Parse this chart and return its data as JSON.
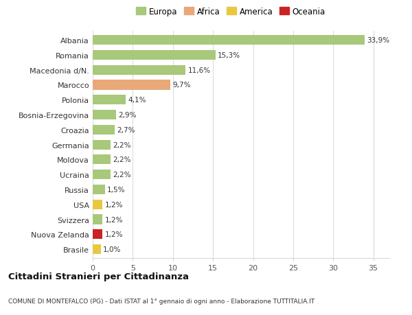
{
  "countries": [
    "Albania",
    "Romania",
    "Macedonia d/N.",
    "Marocco",
    "Polonia",
    "Bosnia-Erzegovina",
    "Croazia",
    "Germania",
    "Moldova",
    "Ucraina",
    "Russia",
    "USA",
    "Svizzera",
    "Nuova Zelanda",
    "Brasile"
  ],
  "values": [
    33.9,
    15.3,
    11.6,
    9.7,
    4.1,
    2.9,
    2.7,
    2.2,
    2.2,
    2.2,
    1.5,
    1.2,
    1.2,
    1.2,
    1.0
  ],
  "labels": [
    "33,9%",
    "15,3%",
    "11,6%",
    "9,7%",
    "4,1%",
    "2,9%",
    "2,7%",
    "2,2%",
    "2,2%",
    "2,2%",
    "1,5%",
    "1,2%",
    "1,2%",
    "1,2%",
    "1,0%"
  ],
  "continents": [
    "Europa",
    "Europa",
    "Europa",
    "Africa",
    "Europa",
    "Europa",
    "Europa",
    "Europa",
    "Europa",
    "Europa",
    "Europa",
    "America",
    "Europa",
    "Oceania",
    "America"
  ],
  "colors": {
    "Europa": "#a8c87a",
    "Africa": "#e8a878",
    "America": "#e8c840",
    "Oceania": "#cc2222"
  },
  "title": "Cittadini Stranieri per Cittadinanza",
  "subtitle": "COMUNE DI MONTEFALCO (PG) - Dati ISTAT al 1° gennaio di ogni anno - Elaborazione TUTTITALIA.IT",
  "xlim": [
    0,
    37
  ],
  "xticks": [
    0,
    5,
    10,
    15,
    20,
    25,
    30,
    35
  ],
  "background_color": "#ffffff",
  "grid_color": "#d8d8d8"
}
